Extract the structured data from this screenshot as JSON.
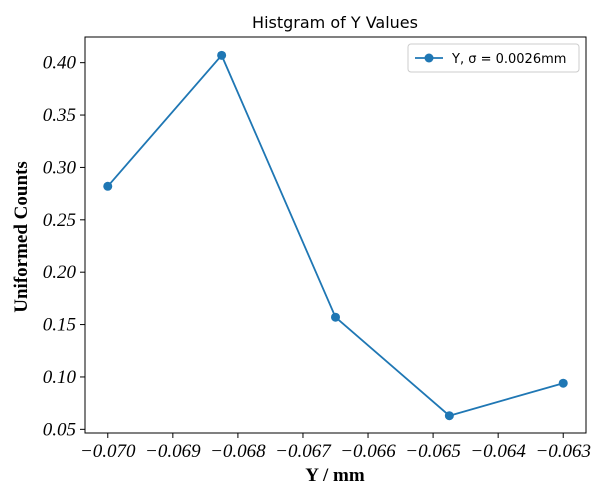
{
  "chart_data": {
    "type": "line",
    "title": "Histgram of Y Values",
    "xlabel": "Y / mm",
    "ylabel": "Uniformed Counts",
    "x": [
      -0.07,
      -0.06825,
      -0.0665,
      -0.06475,
      -0.063
    ],
    "series": [
      {
        "name": "Y, σ = 0.0026mm",
        "values": [
          0.282,
          0.407,
          0.157,
          0.063,
          0.094
        ],
        "color": "#1f77b4"
      }
    ],
    "xlim": [
      -0.07035,
      -0.06265
    ],
    "ylim": [
      0.0465,
      0.4245
    ],
    "xticks": [
      -0.07,
      -0.069,
      -0.068,
      -0.067,
      -0.066,
      -0.065,
      -0.064,
      -0.063
    ],
    "xtick_labels": [
      "−0.070",
      "−0.069",
      "−0.068",
      "−0.067",
      "−0.066",
      "−0.065",
      "−0.064",
      "−0.063"
    ],
    "yticks": [
      0.05,
      0.1,
      0.15,
      0.2,
      0.25,
      0.3,
      0.35,
      0.4
    ],
    "ytick_labels": [
      "0.05",
      "0.10",
      "0.15",
      "0.20",
      "0.25",
      "0.30",
      "0.35",
      "0.40"
    ],
    "grid": false,
    "legend_position": "top-right",
    "marker": "circle"
  }
}
